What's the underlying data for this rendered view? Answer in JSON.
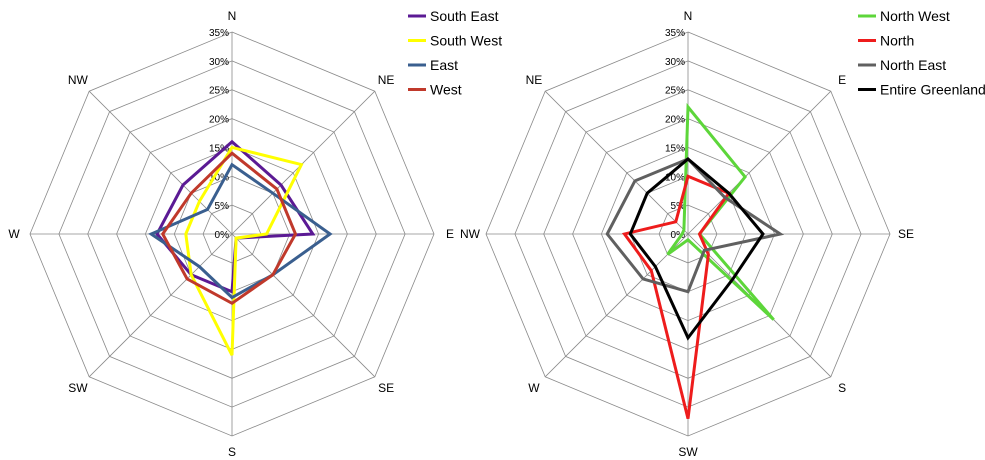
{
  "chart_data": [
    {
      "type": "radar",
      "directions": [
        "N",
        "NE",
        "E",
        "SE",
        "S",
        "SW",
        "W",
        "NW"
      ],
      "rlim": [
        0,
        35
      ],
      "tick_labels": [
        "0%",
        "5%",
        "10%",
        "15%",
        "20%",
        "25%",
        "30%",
        "35%"
      ],
      "grid": true,
      "legend_position": "top-right",
      "series": [
        {
          "name": "South East",
          "color": "#5b1a94",
          "values": [
            16,
            12,
            14,
            1,
            10,
            10,
            13,
            12
          ]
        },
        {
          "name": "South West",
          "color": "#ffff00",
          "values": [
            15,
            17,
            6,
            1,
            21,
            10,
            8,
            8
          ]
        },
        {
          "name": "East",
          "color": "#3a5f8f",
          "values": [
            12,
            10,
            17,
            10,
            11,
            8,
            14,
            6
          ]
        },
        {
          "name": "West",
          "color": "#c0392b",
          "values": [
            14,
            11,
            11,
            10,
            12,
            11,
            12,
            10
          ]
        }
      ]
    },
    {
      "type": "radar",
      "directions": [
        "N",
        "E",
        "SE",
        "S",
        "SW",
        "W",
        "NW",
        "NE"
      ],
      "rlim": [
        0,
        35
      ],
      "tick_labels": [
        "0%",
        "5%",
        "10%",
        "15%",
        "20%",
        "25%",
        "30%",
        "35%"
      ],
      "grid": true,
      "legend_position": "top-right",
      "series": [
        {
          "name": "North West",
          "color": "#5dd63a",
          "values": [
            22,
            14,
            2,
            21,
            1,
            5,
            1,
            1
          ]
        },
        {
          "name": "North",
          "color": "#ee1c1c",
          "values": [
            10,
            10,
            2,
            5,
            32,
            9,
            11,
            3
          ]
        },
        {
          "name": "North East",
          "color": "#606060",
          "values": [
            13,
            9,
            16,
            4,
            10,
            11,
            14,
            13
          ]
        },
        {
          "name": "Entire Greenland",
          "color": "#000000",
          "values": [
            13,
            10,
            13,
            11,
            18,
            8,
            10,
            10
          ]
        }
      ]
    }
  ]
}
